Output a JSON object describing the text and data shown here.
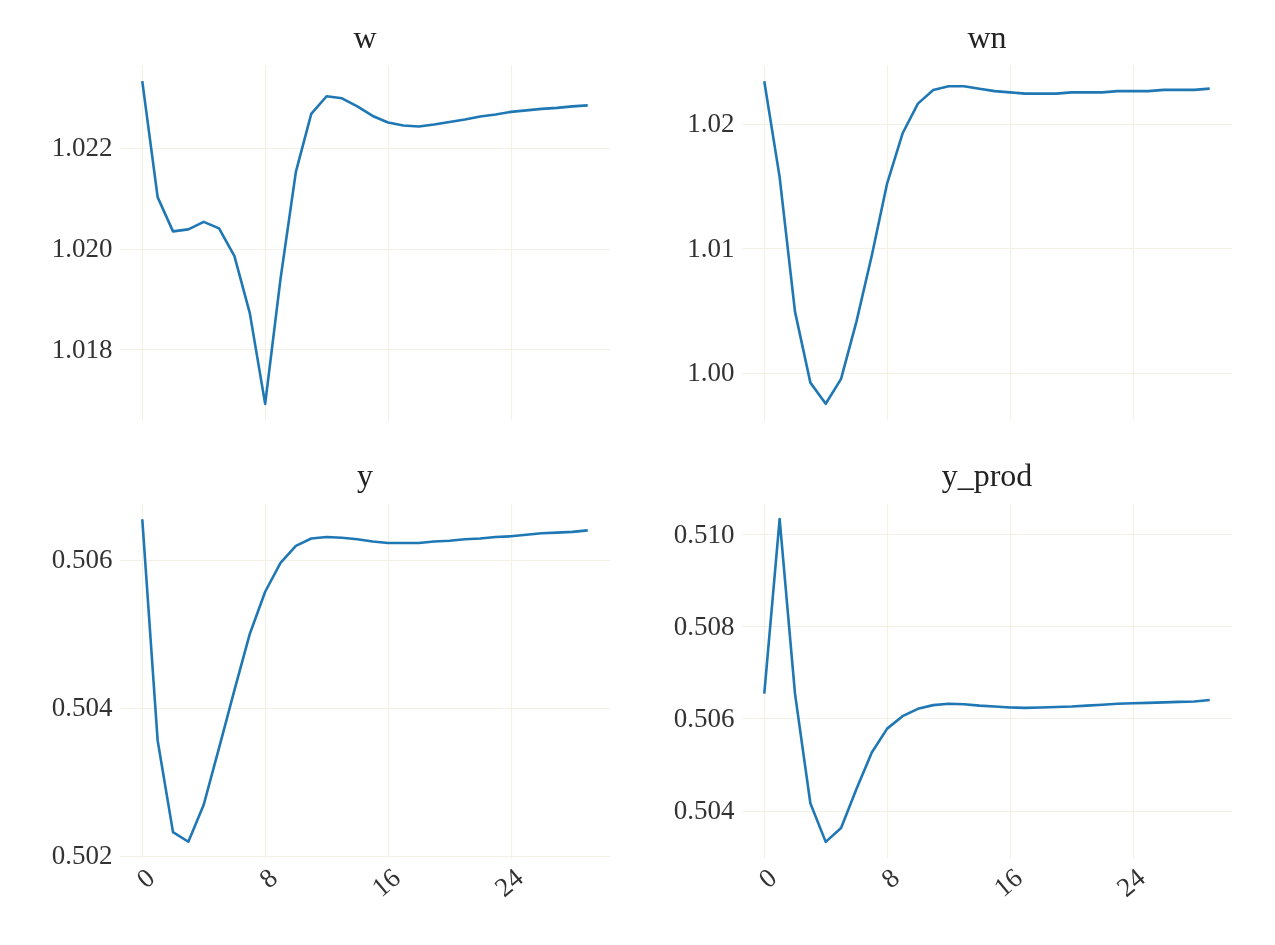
{
  "chart_data": [
    {
      "type": "line",
      "title": "w",
      "x": [
        0,
        1,
        2,
        3,
        4,
        5,
        6,
        7,
        8,
        9,
        10,
        11,
        12,
        13,
        14,
        15,
        16,
        17,
        18,
        19,
        20,
        21,
        22,
        23,
        24,
        25,
        26,
        27,
        28,
        29
      ],
      "series": [
        {
          "color": "#1f77b4",
          "values": [
            1.02332,
            1.02102,
            1.02034,
            1.02038,
            1.02053,
            1.0204,
            1.01985,
            1.01872,
            1.01692,
            1.0194,
            1.02152,
            1.02267,
            1.02302,
            1.02298,
            1.02282,
            1.02263,
            1.0225,
            1.02244,
            1.02242,
            1.02246,
            1.02251,
            1.02256,
            1.02262,
            1.02266,
            1.02271,
            1.02274,
            1.02277,
            1.02279,
            1.02282,
            1.02284
          ]
        }
      ],
      "xlim": [
        -1.45,
        30.45
      ],
      "xticks": [
        0,
        8,
        16,
        24
      ],
      "ylim": [
        1.0166,
        1.02364
      ],
      "yticks": [
        1.018,
        {
          "value": 1.02,
          "label": "1.020"
        },
        {
          "value": 1.022,
          "label": "1.022"
        }
      ],
      "grid": true,
      "tick_labels": "y"
    },
    {
      "type": "line",
      "title": "wn",
      "x": [
        0,
        1,
        2,
        3,
        4,
        5,
        6,
        7,
        8,
        9,
        10,
        11,
        12,
        13,
        14,
        15,
        16,
        17,
        18,
        19,
        20,
        21,
        22,
        23,
        24,
        25,
        26,
        27,
        28,
        29
      ],
      "series": [
        {
          "color": "#1f77b4",
          "values": [
            1.0234,
            1.0157,
            1.0049,
            0.9992,
            0.9975,
            0.9995,
            1.0041,
            1.0094,
            1.0152,
            1.0192,
            1.0216,
            1.0227,
            1.023,
            1.023,
            1.0228,
            1.0226,
            1.0225,
            1.0224,
            1.0224,
            1.0224,
            1.0225,
            1.0225,
            1.0225,
            1.0226,
            1.0226,
            1.0226,
            1.0227,
            1.0227,
            1.0227,
            1.0228
          ]
        }
      ],
      "xlim": [
        -1.45,
        30.45
      ],
      "xticks": [
        0,
        8,
        16,
        24
      ],
      "ylim": [
        0.9962,
        1.0247
      ],
      "yticks": [
        {
          "value": 1.0,
          "label": "1.00"
        },
        1.01,
        {
          "value": 1.02,
          "label": "1.02"
        }
      ],
      "grid": true,
      "tick_labels": "y"
    },
    {
      "type": "line",
      "title": "y",
      "x": [
        0,
        1,
        2,
        3,
        4,
        5,
        6,
        7,
        8,
        9,
        10,
        11,
        12,
        13,
        14,
        15,
        16,
        17,
        18,
        19,
        20,
        21,
        22,
        23,
        24,
        25,
        26,
        27,
        28,
        29
      ],
      "series": [
        {
          "color": "#1f77b4",
          "values": [
            0.50655,
            0.50356,
            0.50232,
            0.50219,
            0.50269,
            0.50346,
            0.50424,
            0.505,
            0.50557,
            0.50596,
            0.50619,
            0.50629,
            0.50631,
            0.5063,
            0.50628,
            0.50625,
            0.50623,
            0.50623,
            0.50623,
            0.50625,
            0.50626,
            0.50628,
            0.50629,
            0.50631,
            0.50632,
            0.50634,
            0.50636,
            0.50637,
            0.50638,
            0.5064
          ]
        }
      ],
      "xlim": [
        -1.45,
        30.45
      ],
      "xticks": [
        0,
        8,
        16,
        24
      ],
      "ylim": [
        0.50197,
        0.50677
      ],
      "yticks": [
        0.502,
        0.504,
        0.506
      ],
      "grid": true
    },
    {
      "type": "line",
      "title": "y_prod",
      "x": [
        0,
        1,
        2,
        3,
        4,
        5,
        6,
        7,
        8,
        9,
        10,
        11,
        12,
        13,
        14,
        15,
        16,
        17,
        18,
        19,
        20,
        21,
        22,
        23,
        24,
        25,
        26,
        27,
        28,
        29
      ],
      "series": [
        {
          "color": "#1f77b4",
          "values": [
            0.50654,
            0.51033,
            0.50654,
            0.50416,
            0.50332,
            0.50362,
            0.50447,
            0.50526,
            0.50578,
            0.50605,
            0.50621,
            0.50629,
            0.50632,
            0.50631,
            0.50628,
            0.50626,
            0.50624,
            0.50623,
            0.50624,
            0.50625,
            0.50626,
            0.50628,
            0.5063,
            0.50632,
            0.50633,
            0.50634,
            0.50635,
            0.50636,
            0.50637,
            0.5064
          ]
        }
      ],
      "xlim": [
        -1.45,
        30.45
      ],
      "xticks": [
        0,
        8,
        16,
        24
      ],
      "ylim": [
        0.50297,
        0.51068
      ],
      "yticks": [
        0.504,
        0.506,
        0.508,
        {
          "value": 0.51,
          "label": "0.510"
        }
      ],
      "grid": true
    }
  ]
}
